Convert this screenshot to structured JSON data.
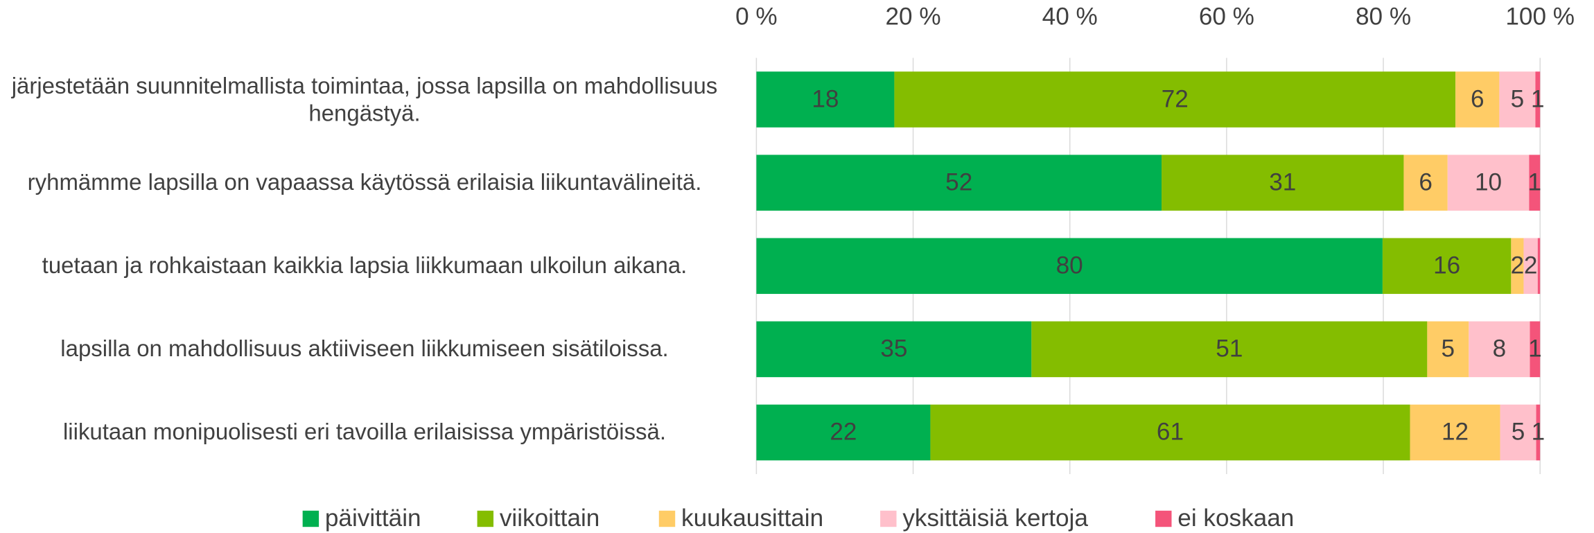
{
  "chart_data": {
    "type": "stacked-bar-horizontal",
    "categories": [
      "järjestetään suunnitelmallista toimintaa, jossa lapsilla on mahdollisuus hengästyä.",
      "ryhmämme lapsilla on vapaassa käytössä erilaisia liikuntavälineitä.",
      "tuetaan ja rohkaistaan kaikkia lapsia liikkumaan ulkoilun aikana.",
      "lapsilla on mahdollisuus aktiiviseen liikkumiseen sisätiloissa.",
      "liikutaan monipuolisesti eri tavoilla erilaisissa ympäristöissä."
    ],
    "series": [
      {
        "name": "päivittäin",
        "color": "#00b050",
        "values": [
          17.6,
          51.7,
          79.9,
          35.1,
          22.2
        ],
        "value_labels": [
          "18",
          "52",
          "80",
          "35",
          "22"
        ]
      },
      {
        "name": "viikoittain",
        "color": "#84bd00",
        "values": [
          71.6,
          30.9,
          16.4,
          50.5,
          61.2
        ],
        "value_labels": [
          "72",
          "31",
          "16",
          "51",
          "61"
        ]
      },
      {
        "name": "kuukausittain",
        "color": "#ffcc66",
        "values": [
          5.6,
          5.6,
          1.6,
          5.3,
          11.5
        ],
        "value_labels": [
          "6",
          "6",
          "2",
          "5",
          "12"
        ]
      },
      {
        "name": "yksittäisiä kertoja",
        "color": "#ffc0cb",
        "values": [
          4.6,
          10.4,
          1.8,
          7.8,
          4.6
        ],
        "value_labels": [
          "5",
          "10",
          "2",
          "8",
          "5"
        ]
      },
      {
        "name": "ei koskaan",
        "color": "#f4547a",
        "values": [
          0.6,
          1.4,
          0.3,
          1.3,
          0.5
        ],
        "value_labels": [
          "1",
          "1",
          null,
          "1",
          "1"
        ]
      }
    ],
    "xlim": [
      0,
      100
    ],
    "xticks": [
      {
        "value": 0,
        "label": "0 %"
      },
      {
        "value": 20,
        "label": "20 %"
      },
      {
        "value": 40,
        "label": "40 %"
      },
      {
        "value": 60,
        "label": "60 %"
      },
      {
        "value": 80,
        "label": "80 %"
      },
      {
        "value": 100,
        "label": "100 %"
      }
    ],
    "grid": true,
    "legend": "bottom"
  }
}
